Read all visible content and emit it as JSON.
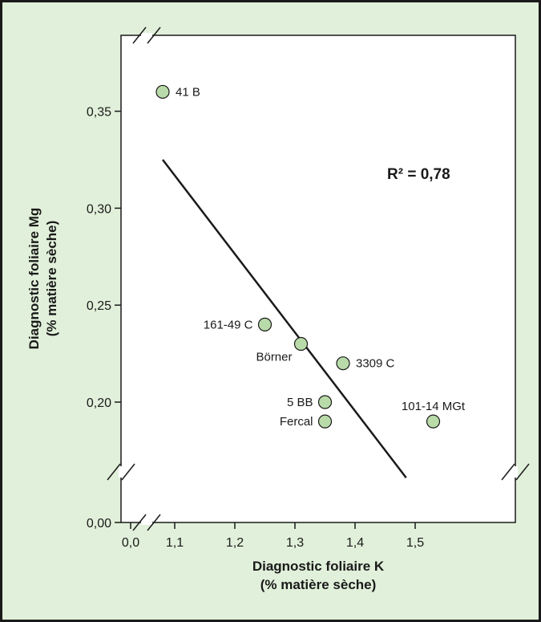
{
  "chart_data": {
    "type": "scatter",
    "xlabel": [
      "Diagnostic foliaire K",
      "(% matière sèche)"
    ],
    "ylabel": [
      "Diagnostic foliaire Mg",
      "(% matière sèche)"
    ],
    "x_ticks": [
      {
        "value": 0.0,
        "label": "0,0"
      },
      {
        "value": 1.1,
        "label": "1,1"
      },
      {
        "value": 1.2,
        "label": "1,2"
      },
      {
        "value": 1.3,
        "label": "1,3"
      },
      {
        "value": 1.4,
        "label": "1,4"
      },
      {
        "value": 1.5,
        "label": "1,5"
      }
    ],
    "y_ticks": [
      {
        "value": 0.0,
        "label": "0,00"
      },
      {
        "value": 0.2,
        "label": "0,20"
      },
      {
        "value": 0.25,
        "label": "0,25"
      },
      {
        "value": 0.3,
        "label": "0,30"
      },
      {
        "value": 0.35,
        "label": "0,35"
      }
    ],
    "x_range_after_break": [
      1.05,
      1.59
    ],
    "y_range_after_break": [
      0.15,
      0.38
    ],
    "axis_breaks": {
      "x": true,
      "y": true
    },
    "points": [
      {
        "label": "41 B",
        "x": 1.08,
        "y": 0.36,
        "label_side": "right"
      },
      {
        "label": "161-49 C",
        "x": 1.25,
        "y": 0.24,
        "label_side": "left"
      },
      {
        "label": "Börner",
        "x": 1.31,
        "y": 0.23,
        "label_side": "below-left"
      },
      {
        "label": "3309 C",
        "x": 1.38,
        "y": 0.22,
        "label_side": "right"
      },
      {
        "label": "5 BB",
        "x": 1.35,
        "y": 0.2,
        "label_side": "left"
      },
      {
        "label": "Fercal",
        "x": 1.35,
        "y": 0.19,
        "label_side": "left"
      },
      {
        "label": "101-14 MGt",
        "x": 1.53,
        "y": 0.19,
        "label_side": "above"
      }
    ],
    "trendline": {
      "x1": 1.08,
      "y1": 0.325,
      "x2": 1.485,
      "y2": 0.161
    },
    "annotation": "R² = 0,78",
    "marker_color": "#b9dba9",
    "marker_edge": "#1a1a1a",
    "background_color": "#e1f0da",
    "grid": false
  }
}
